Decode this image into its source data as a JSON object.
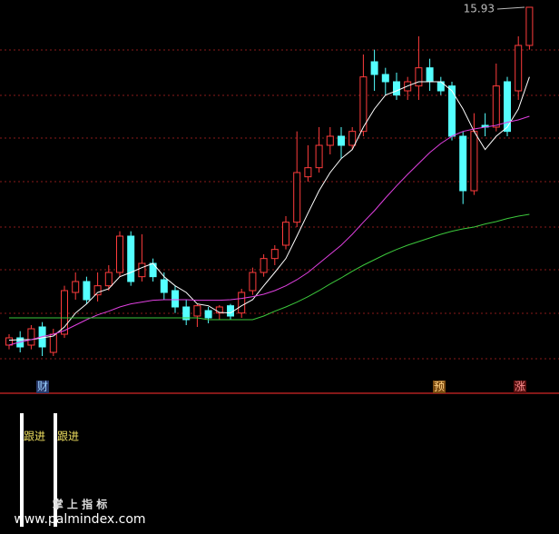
{
  "chart_data": {
    "type": "candlestick",
    "ylim": [
      9.57,
      16.05
    ],
    "up_color": "#ff3c3c",
    "down_color": "#54ffff",
    "open": [
      10.35,
      10.47,
      10.35,
      10.65,
      10.23,
      10.53,
      11.22,
      11.4,
      11.18,
      11.33,
      11.55,
      12.15,
      11.48,
      11.7,
      11.43,
      11.25,
      10.98,
      10.83,
      10.92,
      10.88,
      11.0,
      10.88,
      11.25,
      11.55,
      11.78,
      12.0,
      12.38,
      13.13,
      13.28,
      13.65,
      13.8,
      13.65,
      13.88,
      15.03,
      14.82,
      14.7,
      14.55,
      14.63,
      14.93,
      14.7,
      14.63,
      13.8,
      12.9,
      13.98,
      13.95,
      14.7,
      14.55,
      15.3
    ],
    "high": [
      10.53,
      10.58,
      10.68,
      10.73,
      10.62,
      11.33,
      11.55,
      11.48,
      11.55,
      11.67,
      12.23,
      12.23,
      12.18,
      11.78,
      11.55,
      11.33,
      11.1,
      11.03,
      10.98,
      11.01,
      11.03,
      11.28,
      11.63,
      11.85,
      12.0,
      12.48,
      13.88,
      13.65,
      13.95,
      13.95,
      13.95,
      13.95,
      15.15,
      15.23,
      14.93,
      14.85,
      14.78,
      15.45,
      15.08,
      14.78,
      14.7,
      13.88,
      14.18,
      14.18,
      15.0,
      14.78,
      15.45,
      15.93
    ],
    "low": [
      10.28,
      10.23,
      10.28,
      10.17,
      10.17,
      10.47,
      11.1,
      11.03,
      11.07,
      11.25,
      11.48,
      11.33,
      11.4,
      11.4,
      11.1,
      10.88,
      10.68,
      10.65,
      10.71,
      10.77,
      10.77,
      10.8,
      11.18,
      11.48,
      11.67,
      11.93,
      12.3,
      13.05,
      13.2,
      13.5,
      13.43,
      13.58,
      13.8,
      14.55,
      14.48,
      14.4,
      14.4,
      14.4,
      14.55,
      14.48,
      13.73,
      12.68,
      12.83,
      13.8,
      13.88,
      13.8,
      14.4,
      15.23
    ],
    "close": [
      10.47,
      10.32,
      10.62,
      10.32,
      10.53,
      11.25,
      11.4,
      11.1,
      11.33,
      11.55,
      12.15,
      11.4,
      11.7,
      11.48,
      11.22,
      10.98,
      10.77,
      11.0,
      10.8,
      10.98,
      10.83,
      11.22,
      11.55,
      11.78,
      11.93,
      12.38,
      13.2,
      13.28,
      13.65,
      13.8,
      13.65,
      13.88,
      14.78,
      14.82,
      14.7,
      14.48,
      14.7,
      14.93,
      14.7,
      14.55,
      13.8,
      12.9,
      13.88,
      13.95,
      14.63,
      13.88,
      15.3,
      15.93
    ],
    "series": [
      {
        "color": "#ffffff",
        "values": [
          10.43,
          10.44,
          10.44,
          10.47,
          10.5,
          10.65,
          10.88,
          11.03,
          11.22,
          11.28,
          11.48,
          11.55,
          11.63,
          11.7,
          11.48,
          11.33,
          11.22,
          11.03,
          11.0,
          10.89,
          10.88,
          11.0,
          11.1,
          11.33,
          11.55,
          11.78,
          12.15,
          12.53,
          12.9,
          13.2,
          13.43,
          13.58,
          13.95,
          14.25,
          14.48,
          14.55,
          14.63,
          14.7,
          14.7,
          14.7,
          14.55,
          14.25,
          13.88,
          13.58,
          13.8,
          13.95,
          14.25,
          14.78
        ]
      },
      {
        "color": "#e040e0",
        "values": [
          10.35,
          10.4,
          10.44,
          10.49,
          10.53,
          10.59,
          10.68,
          10.77,
          10.85,
          10.91,
          10.98,
          11.03,
          11.06,
          11.09,
          11.1,
          11.1,
          11.1,
          11.09,
          11.09,
          11.09,
          11.1,
          11.12,
          11.15,
          11.19,
          11.25,
          11.33,
          11.43,
          11.55,
          11.7,
          11.85,
          12.0,
          12.18,
          12.38,
          12.57,
          12.78,
          12.98,
          13.17,
          13.35,
          13.53,
          13.68,
          13.8,
          13.88,
          13.92,
          13.95,
          13.98,
          14.03,
          14.07,
          14.13
        ]
      },
      {
        "color": "#3cc83c",
        "values": [
          10.8,
          10.8,
          10.8,
          10.8,
          10.8,
          10.8,
          10.8,
          10.8,
          10.8,
          10.8,
          10.8,
          10.8,
          10.8,
          10.8,
          10.8,
          10.8,
          10.8,
          10.8,
          10.77,
          10.77,
          10.77,
          10.77,
          10.77,
          10.83,
          10.91,
          10.98,
          11.06,
          11.15,
          11.25,
          11.36,
          11.46,
          11.57,
          11.67,
          11.76,
          11.85,
          11.93,
          12.0,
          12.06,
          12.12,
          12.18,
          12.23,
          12.27,
          12.3,
          12.35,
          12.39,
          12.44,
          12.48,
          12.51
        ]
      }
    ],
    "markers": [
      "财",
      "预",
      "涨"
    ],
    "signal_labels": [
      "跟进",
      "跟进"
    ],
    "watermark": "掌 上 指 标",
    "url": "www.palmindex.com"
  }
}
